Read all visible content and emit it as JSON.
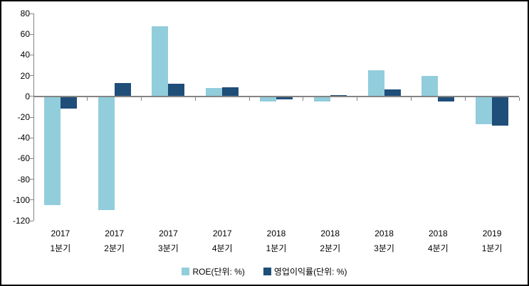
{
  "chart_data": {
    "type": "bar",
    "title": "",
    "categories": [
      {
        "line1": "2017",
        "line2": "1분기"
      },
      {
        "line1": "2017",
        "line2": "2분기"
      },
      {
        "line1": "2017",
        "line2": "3분기"
      },
      {
        "line1": "2017",
        "line2": "4분기"
      },
      {
        "line1": "2018",
        "line2": "1분기"
      },
      {
        "line1": "2018",
        "line2": "2분기"
      },
      {
        "line1": "2018",
        "line2": "3분기"
      },
      {
        "line1": "2018",
        "line2": "4분기"
      },
      {
        "line1": "2019",
        "line2": "1분기"
      }
    ],
    "series": [
      {
        "name": "ROE(단위: %)",
        "color": "#92CDDC",
        "values": [
          -105,
          -110,
          68,
          8,
          -5,
          -5,
          25,
          20,
          -27
        ]
      },
      {
        "name": "영업이익률(단위: %)",
        "color": "#1F4E79",
        "values": [
          -12,
          13,
          12,
          9,
          -3,
          1,
          7,
          -5,
          -28
        ]
      }
    ],
    "xlabel": "",
    "ylabel": "",
    "ylim": [
      -120,
      80
    ],
    "ytick_step": 20,
    "ytick_labels": [
      "80",
      "60",
      "40",
      "20",
      "0",
      "-20",
      "-40",
      "-60",
      "-80",
      "-100",
      "-120"
    ],
    "grid": false,
    "legend_position": "bottom",
    "axis_color": "#848484",
    "text_color": "#000000",
    "background_color": "#FFFFFF",
    "frame_border_color": "#000000"
  }
}
